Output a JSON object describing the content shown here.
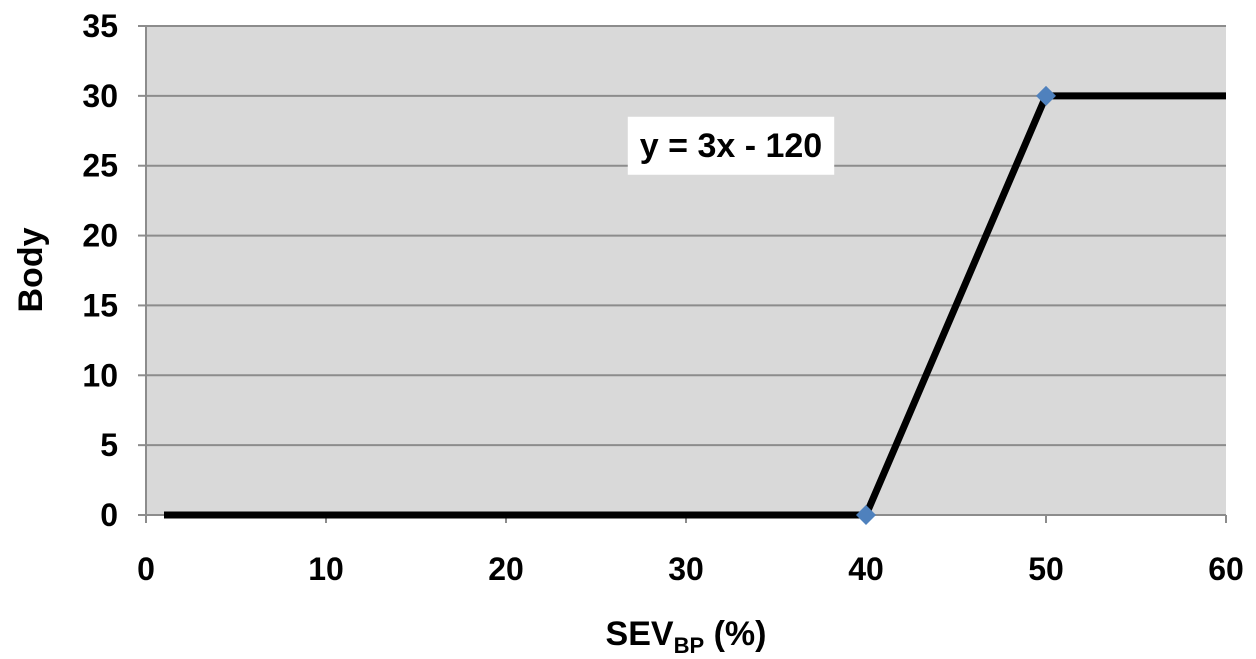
{
  "chart_data": {
    "type": "line",
    "title": "",
    "xlabel": "SEV",
    "xlabel_subscript": "BP",
    "xlabel_suffix": " (%)",
    "ylabel": "Body",
    "xlim": [
      0,
      60
    ],
    "ylim": [
      0,
      35
    ],
    "x_ticks": [
      0,
      10,
      20,
      30,
      40,
      50,
      60
    ],
    "y_ticks": [
      0,
      5,
      10,
      15,
      20,
      25,
      30,
      35
    ],
    "grid": true,
    "plot_background": "#d9d9d9",
    "line_color": "#000000",
    "marker_color": "#4f81bd",
    "series": [
      {
        "x": [
          1,
          40,
          50,
          60
        ],
        "y": [
          0,
          0,
          30,
          30
        ],
        "markers_at": [
          [
            40,
            0
          ],
          [
            50,
            30
          ]
        ]
      }
    ],
    "annotations": [
      {
        "text": "y = 3x - 120",
        "x": 32.5,
        "y": 26.5
      }
    ]
  }
}
